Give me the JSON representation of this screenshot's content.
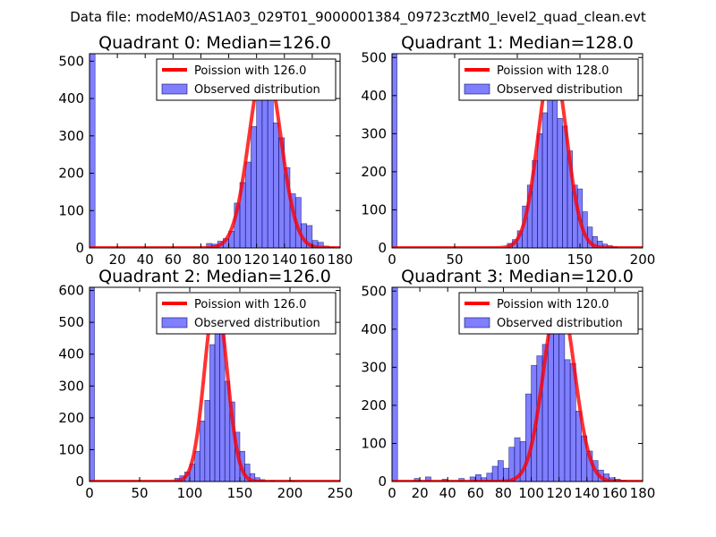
{
  "figure": {
    "suptitle": "Data file: modeM0/AS1A03_029T01_9000001384_09723cztM0_level2_quad_clean.evt"
  },
  "chart_data": [
    {
      "type": "bar",
      "title": "Quadrant 0: Median=126.0",
      "xlim": [
        0,
        180
      ],
      "ylim": [
        0,
        520
      ],
      "xticks": [
        0,
        20,
        40,
        60,
        80,
        100,
        120,
        140,
        160,
        180
      ],
      "yticks": [
        0,
        100,
        200,
        300,
        400,
        500
      ],
      "bin_width": 4,
      "legend": {
        "location": "top-right",
        "line_label": "Poission with 126.0",
        "bar_label": "Observed distribution"
      },
      "poisson_mean": 126.0,
      "poisson_peak": 500,
      "histogram": [
        {
          "x": 0,
          "y": 520
        },
        {
          "x": 84,
          "y": 12
        },
        {
          "x": 88,
          "y": 10
        },
        {
          "x": 92,
          "y": 18
        },
        {
          "x": 96,
          "y": 25
        },
        {
          "x": 100,
          "y": 45
        },
        {
          "x": 104,
          "y": 120
        },
        {
          "x": 108,
          "y": 175
        },
        {
          "x": 112,
          "y": 230
        },
        {
          "x": 116,
          "y": 325
        },
        {
          "x": 120,
          "y": 395
        },
        {
          "x": 124,
          "y": 430
        },
        {
          "x": 128,
          "y": 450
        },
        {
          "x": 132,
          "y": 335
        },
        {
          "x": 136,
          "y": 295
        },
        {
          "x": 140,
          "y": 215
        },
        {
          "x": 144,
          "y": 145
        },
        {
          "x": 148,
          "y": 135
        },
        {
          "x": 152,
          "y": 65
        },
        {
          "x": 156,
          "y": 60
        },
        {
          "x": 160,
          "y": 20
        },
        {
          "x": 164,
          "y": 15
        },
        {
          "x": 168,
          "y": 5
        },
        {
          "x": 172,
          "y": 2
        }
      ]
    },
    {
      "type": "bar",
      "title": "Quadrant 1: Median=128.0",
      "xlim": [
        0,
        200
      ],
      "ylim": [
        0,
        510
      ],
      "xticks": [
        0,
        50,
        100,
        150,
        200
      ],
      "yticks": [
        0,
        100,
        200,
        300,
        400,
        500
      ],
      "bin_width": 4,
      "legend": {
        "location": "top-right",
        "line_label": "Poission with 128.0",
        "bar_label": "Observed distribution"
      },
      "poisson_mean": 128.0,
      "poisson_peak": 490,
      "histogram": [
        {
          "x": 0,
          "y": 510
        },
        {
          "x": 92,
          "y": 12
        },
        {
          "x": 96,
          "y": 22
        },
        {
          "x": 100,
          "y": 45
        },
        {
          "x": 104,
          "y": 110
        },
        {
          "x": 108,
          "y": 165
        },
        {
          "x": 112,
          "y": 230
        },
        {
          "x": 116,
          "y": 300
        },
        {
          "x": 120,
          "y": 355
        },
        {
          "x": 124,
          "y": 430
        },
        {
          "x": 128,
          "y": 420
        },
        {
          "x": 132,
          "y": 340
        },
        {
          "x": 136,
          "y": 320
        },
        {
          "x": 140,
          "y": 255
        },
        {
          "x": 144,
          "y": 165
        },
        {
          "x": 148,
          "y": 155
        },
        {
          "x": 152,
          "y": 95
        },
        {
          "x": 156,
          "y": 55
        },
        {
          "x": 160,
          "y": 30
        },
        {
          "x": 164,
          "y": 18
        },
        {
          "x": 168,
          "y": 10
        },
        {
          "x": 172,
          "y": 6
        },
        {
          "x": 176,
          "y": 3
        }
      ]
    },
    {
      "type": "bar",
      "title": "Quadrant 2: Median=126.0",
      "xlim": [
        0,
        250
      ],
      "ylim": [
        0,
        610
      ],
      "xticks": [
        0,
        50,
        100,
        150,
        200,
        250
      ],
      "yticks": [
        0,
        100,
        200,
        300,
        400,
        500,
        600
      ],
      "bin_width": 5,
      "legend": {
        "location": "top-right",
        "line_label": "Poission with 126.0",
        "bar_label": "Observed distribution"
      },
      "poisson_mean": 126.0,
      "poisson_peak": 580,
      "histogram": [
        {
          "x": 0,
          "y": 610
        },
        {
          "x": 85,
          "y": 10
        },
        {
          "x": 90,
          "y": 18
        },
        {
          "x": 95,
          "y": 30
        },
        {
          "x": 100,
          "y": 55
        },
        {
          "x": 105,
          "y": 95
        },
        {
          "x": 110,
          "y": 190
        },
        {
          "x": 115,
          "y": 255
        },
        {
          "x": 120,
          "y": 430
        },
        {
          "x": 125,
          "y": 540
        },
        {
          "x": 130,
          "y": 510
        },
        {
          "x": 135,
          "y": 315
        },
        {
          "x": 140,
          "y": 250
        },
        {
          "x": 145,
          "y": 155
        },
        {
          "x": 150,
          "y": 95
        },
        {
          "x": 155,
          "y": 55
        },
        {
          "x": 160,
          "y": 25
        },
        {
          "x": 165,
          "y": 12
        },
        {
          "x": 170,
          "y": 6
        },
        {
          "x": 180,
          "y": 2
        },
        {
          "x": 200,
          "y": 2
        }
      ]
    },
    {
      "type": "bar",
      "title": "Quadrant 3: Median=120.0",
      "xlim": [
        0,
        180
      ],
      "ylim": [
        0,
        510
      ],
      "xticks": [
        0,
        20,
        40,
        60,
        80,
        100,
        120,
        140,
        160,
        180
      ],
      "yticks": [
        0,
        100,
        200,
        300,
        400,
        500
      ],
      "bin_width": 4,
      "legend": {
        "location": "top-right",
        "line_label": "Poission with 120.0",
        "bar_label": "Observed distribution"
      },
      "poisson_mean": 120.0,
      "poisson_peak": 490,
      "histogram": [
        {
          "x": 0,
          "y": 510
        },
        {
          "x": 16,
          "y": 8
        },
        {
          "x": 24,
          "y": 12
        },
        {
          "x": 36,
          "y": 6
        },
        {
          "x": 48,
          "y": 8
        },
        {
          "x": 56,
          "y": 12
        },
        {
          "x": 60,
          "y": 18
        },
        {
          "x": 64,
          "y": 10
        },
        {
          "x": 68,
          "y": 22
        },
        {
          "x": 72,
          "y": 40
        },
        {
          "x": 76,
          "y": 55
        },
        {
          "x": 80,
          "y": 35
        },
        {
          "x": 84,
          "y": 90
        },
        {
          "x": 88,
          "y": 115
        },
        {
          "x": 92,
          "y": 105
        },
        {
          "x": 96,
          "y": 230
        },
        {
          "x": 100,
          "y": 305
        },
        {
          "x": 104,
          "y": 330
        },
        {
          "x": 108,
          "y": 360
        },
        {
          "x": 112,
          "y": 420
        },
        {
          "x": 116,
          "y": 455
        },
        {
          "x": 120,
          "y": 470
        },
        {
          "x": 124,
          "y": 320
        },
        {
          "x": 128,
          "y": 310
        },
        {
          "x": 132,
          "y": 185
        },
        {
          "x": 136,
          "y": 120
        },
        {
          "x": 140,
          "y": 80
        },
        {
          "x": 144,
          "y": 55
        },
        {
          "x": 148,
          "y": 30
        },
        {
          "x": 152,
          "y": 20
        },
        {
          "x": 156,
          "y": 10
        },
        {
          "x": 160,
          "y": 6
        },
        {
          "x": 164,
          "y": 3
        }
      ]
    }
  ]
}
